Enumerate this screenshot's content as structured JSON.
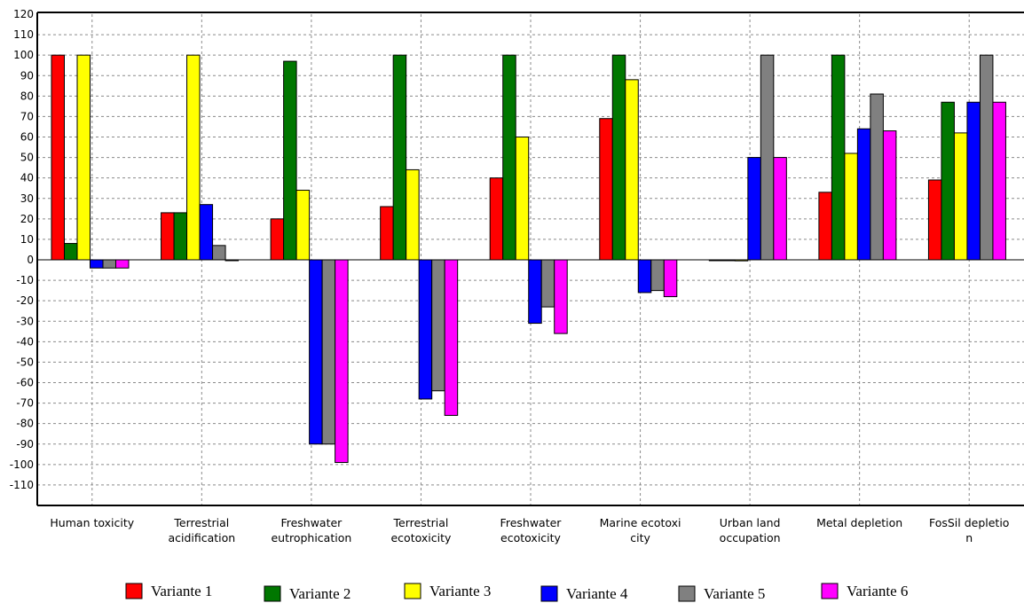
{
  "chart_data": {
    "type": "bar",
    "title": "",
    "xlabel": "",
    "ylabel": "",
    "ylim": [
      -120,
      120
    ],
    "ytick_step": 10,
    "grid": true,
    "legend_position": "bottom",
    "categories": [
      [
        "Human toxicity"
      ],
      [
        "Terrestrial",
        "acidification"
      ],
      [
        "Freshwater",
        "eutrophication"
      ],
      [
        "Terrestrial",
        "ecotoxicity"
      ],
      [
        "Freshwater",
        "ecotoxicity"
      ],
      [
        "Marine ecotoxi",
        "city"
      ],
      [
        "Urban land",
        "occupation"
      ],
      [
        "Metal depletion"
      ],
      [
        "FosSil depletio",
        "n"
      ]
    ],
    "series": [
      {
        "name": "Variante 1",
        "color": "#ff0000",
        "values": [
          100,
          23,
          20,
          26,
          40,
          69,
          0,
          33,
          39
        ]
      },
      {
        "name": "Variante 2",
        "color": "#007700",
        "values": [
          8,
          23,
          97,
          100,
          100,
          100,
          0,
          100,
          77
        ]
      },
      {
        "name": "Variante 3",
        "color": "#ffff00",
        "values": [
          100,
          100,
          34,
          44,
          60,
          88,
          -0.5,
          52,
          62
        ]
      },
      {
        "name": "Variante 4",
        "color": "#0000ff",
        "values": [
          -4,
          27,
          -90,
          -68,
          -31,
          -16,
          50,
          64,
          77
        ]
      },
      {
        "name": "Variante 5",
        "color": "#808080",
        "values": [
          -4,
          7,
          -90,
          -64,
          -23,
          -15,
          100,
          81,
          100
        ]
      },
      {
        "name": "Variante 6",
        "color": "#ff00ff",
        "values": [
          -4,
          0,
          -99,
          -76,
          -36,
          -18,
          50,
          63,
          77
        ]
      }
    ]
  }
}
